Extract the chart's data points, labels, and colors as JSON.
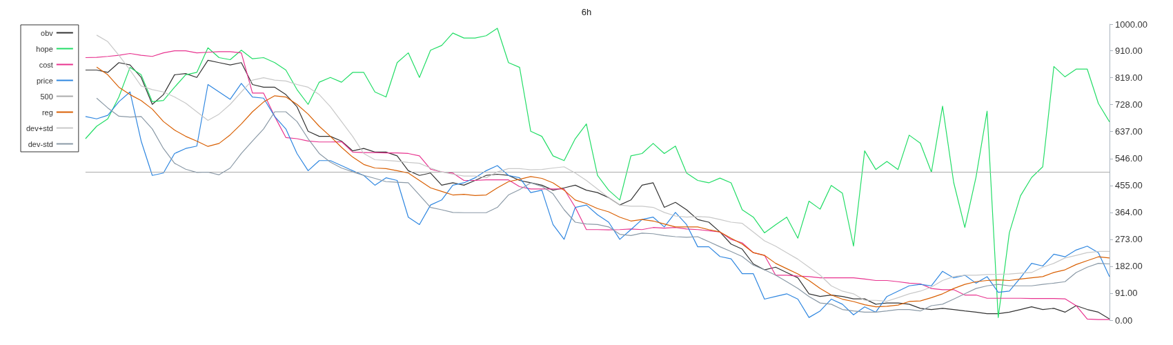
{
  "chart_data": {
    "type": "line",
    "title": "6h",
    "categories": [
      null,
      null,
      null,
      null,
      null,
      null,
      null,
      null,
      null,
      null,
      null,
      null,
      null,
      null,
      null,
      null,
      null,
      null,
      null,
      null,
      null,
      null,
      null,
      null,
      null,
      null,
      null,
      null,
      null,
      null,
      null,
      null,
      null,
      null,
      null,
      null,
      null,
      null,
      null,
      null,
      null,
      null,
      null,
      null,
      null,
      null,
      null,
      null,
      null,
      null,
      null,
      null,
      null,
      null,
      null,
      null,
      null,
      null,
      null,
      null,
      null,
      null,
      null,
      null,
      null,
      null,
      null,
      null,
      null,
      null,
      null,
      null,
      null,
      null,
      null,
      null,
      null,
      null,
      null,
      null,
      null,
      null,
      null,
      null,
      null,
      null,
      null,
      null,
      null,
      null,
      null,
      null,
      null,
      null,
      null,
      null,
      null,
      null,
      null,
      null
    ],
    "series": [
      {
        "name": "obv",
        "color": "#333333",
        "values": [
          null,
          null,
          null,
          null,
          null,
          null,
          null,
          845,
          845,
          837,
          870,
          862,
          820,
          729,
          762,
          829,
          833,
          820,
          878,
          870,
          862,
          870,
          796,
          787,
          787,
          762,
          721,
          638,
          621,
          621,
          605,
          572,
          580,
          568,
          568,
          555,
          505,
          489,
          497,
          456,
          464,
          456,
          472,
          489,
          493,
          489,
          472,
          464,
          456,
          439,
          447,
          456,
          439,
          431,
          414,
          389,
          406,
          456,
          464,
          381,
          398,
          373,
          340,
          331,
          298,
          257,
          240,
          190,
          170,
          179,
          161,
          143,
          89,
          80,
          85,
          80,
          72,
          72,
          54,
          58,
          58,
          54,
          40,
          36,
          40,
          36,
          31,
          27,
          22,
          22,
          27,
          36,
          45,
          36,
          40,
          27,
          49,
          36,
          27,
          4
        ]
      },
      {
        "name": "hope",
        "color": "#22dd66",
        "values": [
          null,
          null,
          null,
          null,
          null,
          null,
          null,
          613,
          655,
          680,
          754,
          854,
          829,
          738,
          742,
          787,
          829,
          837,
          920,
          887,
          880,
          912,
          883,
          887,
          870,
          845,
          779,
          729,
          804,
          820,
          804,
          837,
          837,
          771,
          754,
          870,
          903,
          820,
          912,
          928,
          970,
          953,
          953,
          961,
          986,
          870,
          854,
          638,
          621,
          555,
          539,
          613,
          663,
          489,
          439,
          406,
          555,
          563,
          597,
          563,
          588,
          497,
          472,
          464,
          480,
          464,
          373,
          348,
          295,
          322,
          348,
          277,
          402,
          375,
          455,
          429,
          250,
          572,
          509,
          536,
          509,
          625,
          598,
          500,
          723,
          465,
          313,
          482,
          706,
          9,
          295,
          420,
          482,
          518,
          857,
          822,
          848,
          848,
          732,
          670
        ]
      },
      {
        "name": "cost",
        "color": "#e8338f",
        "values": [
          null,
          null,
          null,
          null,
          null,
          null,
          null,
          887,
          888,
          891,
          895,
          901,
          895,
          891,
          903,
          910,
          910,
          903,
          905,
          907,
          907,
          903,
          767,
          767,
          688,
          617,
          613,
          605,
          602,
          602,
          603,
          568,
          566,
          566,
          565,
          565,
          563,
          555,
          510,
          501,
          497,
          472,
          472,
          474,
          474,
          474,
          451,
          443,
          443,
          443,
          443,
          381,
          306,
          306,
          305,
          306,
          308,
          306,
          313,
          311,
          313,
          308,
          306,
          302,
          298,
          273,
          261,
          228,
          219,
          152,
          152,
          149,
          147,
          143,
          143,
          143,
          143,
          139,
          134,
          134,
          130,
          125,
          123,
          107,
          103,
          103,
          85,
          85,
          74,
          74,
          74,
          74,
          73,
          73,
          73,
          72,
          49,
          4,
          2,
          2
        ]
      },
      {
        "name": "price",
        "color": "#2e86e0",
        "values": [
          null,
          null,
          null,
          null,
          null,
          null,
          null,
          688,
          680,
          692,
          738,
          771,
          605,
          489,
          497,
          563,
          580,
          588,
          796,
          771,
          746,
          800,
          754,
          750,
          688,
          646,
          563,
          505,
          539,
          539,
          522,
          505,
          489,
          456,
          481,
          472,
          348,
          323,
          389,
          406,
          456,
          464,
          481,
          505,
          522,
          489,
          481,
          431,
          439,
          323,
          273,
          381,
          389,
          356,
          331,
          273,
          306,
          340,
          348,
          315,
          364,
          323,
          248,
          248,
          215,
          207,
          157,
          157,
          71,
          80,
          89,
          71,
          9,
          31,
          71,
          54,
          18,
          45,
          27,
          80,
          98,
          116,
          121,
          116,
          165,
          143,
          152,
          125,
          147,
          94,
          98,
          143,
          192,
          183,
          223,
          214,
          237,
          250,
          228,
          147
        ]
      },
      {
        "name": "500",
        "color": "#aaaaaa",
        "values": [
          null,
          null,
          null,
          null,
          null,
          null,
          null,
          500,
          500,
          500,
          500,
          500,
          500,
          500,
          500,
          500,
          500,
          500,
          500,
          500,
          500,
          500,
          500,
          500,
          500,
          500,
          500,
          500,
          500,
          500,
          500,
          500,
          500,
          500,
          500,
          500,
          500,
          500,
          500,
          500,
          500,
          500,
          500,
          500,
          500,
          500,
          500,
          500,
          500,
          500,
          500,
          500,
          500,
          500,
          500,
          500,
          500,
          500,
          500,
          500,
          500,
          500,
          500,
          500,
          500,
          500,
          500,
          500,
          500,
          500,
          500,
          500,
          500,
          500,
          500,
          500,
          500,
          500,
          500,
          500,
          500,
          500,
          500,
          500,
          500,
          500,
          500,
          500,
          500,
          500,
          500,
          500,
          500,
          500,
          500,
          500,
          500,
          500,
          500,
          500
        ]
      },
      {
        "name": "reg",
        "color": "#d95f02",
        "values": [
          null,
          null,
          null,
          null,
          null,
          null,
          null,
          null,
          855,
          829,
          787,
          762,
          742,
          713,
          671,
          642,
          621,
          605,
          587,
          597,
          626,
          663,
          704,
          737,
          758,
          754,
          729,
          696,
          655,
          621,
          584,
          551,
          526,
          514,
          512,
          505,
          497,
          472,
          447,
          435,
          423,
          425,
          421,
          423,
          447,
          468,
          476,
          485,
          479,
          464,
          439,
          406,
          394,
          377,
          366,
          348,
          335,
          340,
          335,
          325,
          315,
          315,
          315,
          306,
          298,
          277,
          257,
          228,
          219,
          192,
          174,
          156,
          134,
          107,
          85,
          71,
          63,
          52,
          45,
          47,
          51,
          63,
          65,
          76,
          89,
          107,
          121,
          130,
          134,
          136,
          134,
          139,
          143,
          147,
          161,
          170,
          188,
          201,
          214,
          210
        ]
      },
      {
        "name": "dev+std",
        "color": "#c8c8c8",
        "values": [
          null,
          null,
          null,
          null,
          null,
          null,
          null,
          null,
          963,
          941,
          895,
          845,
          791,
          779,
          771,
          754,
          733,
          704,
          675,
          696,
          729,
          771,
          811,
          819,
          811,
          808,
          796,
          787,
          762,
          721,
          671,
          621,
          563,
          542,
          540,
          537,
          533,
          530,
          514,
          501,
          493,
          487,
          487,
          481,
          501,
          512,
          512,
          508,
          509,
          514,
          518,
          497,
          472,
          443,
          414,
          389,
          385,
          385,
          381,
          364,
          352,
          348,
          350,
          348,
          340,
          331,
          327,
          298,
          268,
          250,
          228,
          206,
          179,
          152,
          116,
          98,
          89,
          67,
          67,
          64,
          76,
          89,
          98,
          112,
          134,
          147,
          152,
          152,
          154,
          155,
          156,
          159,
          161,
          179,
          192,
          210,
          219,
          228,
          232,
          232
        ]
      },
      {
        "name": "dev-std",
        "color": "#8a99a6",
        "values": [
          null,
          null,
          null,
          null,
          null,
          null,
          null,
          null,
          750,
          717,
          689,
          686,
          688,
          646,
          580,
          530,
          510,
          499,
          500,
          491,
          514,
          563,
          605,
          646,
          704,
          704,
          671,
          613,
          563,
          534,
          514,
          501,
          489,
          479,
          468,
          466,
          464,
          423,
          381,
          373,
          364,
          363,
          363,
          363,
          381,
          423,
          441,
          464,
          452,
          427,
          373,
          331,
          325,
          323,
          315,
          290,
          286,
          294,
          292,
          286,
          282,
          280,
          282,
          265,
          248,
          232,
          215,
          186,
          170,
          152,
          130,
          107,
          80,
          58,
          54,
          36,
          31,
          27,
          27,
          31,
          36,
          36,
          31,
          49,
          54,
          71,
          89,
          107,
          116,
          121,
          116,
          116,
          116,
          121,
          125,
          130,
          161,
          179,
          192,
          190
        ]
      }
    ],
    "ylim": [
      0,
      1000
    ],
    "yticks": [
      {
        "value": 0,
        "label": "0.00"
      },
      {
        "value": 91,
        "label": "91.00"
      },
      {
        "value": 182,
        "label": "182.00"
      },
      {
        "value": 273,
        "label": "273.00"
      },
      {
        "value": 364,
        "label": "364.00"
      },
      {
        "value": 455,
        "label": "455.00"
      },
      {
        "value": 546,
        "label": "546.00"
      },
      {
        "value": 637,
        "label": "637.00"
      },
      {
        "value": 728,
        "label": "728.00"
      },
      {
        "value": 819,
        "label": "819.00"
      },
      {
        "value": 910,
        "label": "910.00"
      },
      {
        "value": 1000,
        "label": "1000.00"
      }
    ],
    "legend": "top left",
    "marker": "none",
    "line_style": "solid",
    "tick_labels": "y"
  }
}
